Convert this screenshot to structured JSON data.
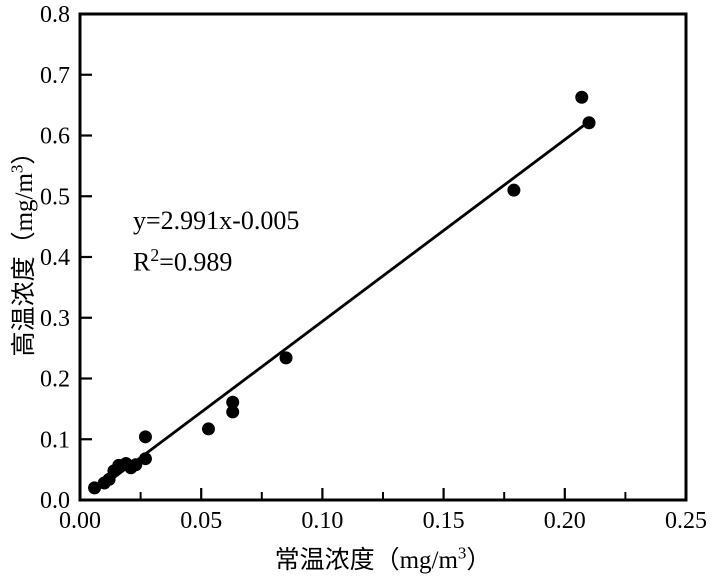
{
  "chart_data": {
    "type": "scatter",
    "title": "",
    "xlabel": "常温浓度（mg/m³）",
    "ylabel": "高温浓度（mg/m³）",
    "xlim": [
      0,
      0.25
    ],
    "ylim": [
      0,
      0.8
    ],
    "x_major_ticks": [
      0,
      0.05,
      0.1,
      0.15,
      0.2,
      0.25
    ],
    "x_tick_labels": [
      "0.00",
      "0.05",
      "0.10",
      "0.15",
      "0.20",
      "0.25"
    ],
    "x_minor_ticks": [
      0.025,
      0.075,
      0.125,
      0.175,
      0.225
    ],
    "y_major_ticks": [
      0,
      0.1,
      0.2,
      0.3,
      0.4,
      0.5,
      0.6,
      0.7,
      0.8
    ],
    "y_tick_labels": [
      "0.0",
      "0.1",
      "0.2",
      "0.3",
      "0.4",
      "0.5",
      "0.6",
      "0.7",
      "0.8"
    ],
    "grid": false,
    "legend": false,
    "points": [
      [
        0.006,
        0.02
      ],
      [
        0.01,
        0.028
      ],
      [
        0.012,
        0.034
      ],
      [
        0.014,
        0.048
      ],
      [
        0.016,
        0.057
      ],
      [
        0.019,
        0.06
      ],
      [
        0.021,
        0.053
      ],
      [
        0.023,
        0.058
      ],
      [
        0.027,
        0.068
      ],
      [
        0.027,
        0.104
      ],
      [
        0.053,
        0.117
      ],
      [
        0.063,
        0.145
      ],
      [
        0.063,
        0.161
      ],
      [
        0.085,
        0.234
      ],
      [
        0.179,
        0.51
      ],
      [
        0.207,
        0.663
      ],
      [
        0.21,
        0.621
      ]
    ],
    "fit_line": {
      "equation": "y=2.991x-0.005",
      "slope": 2.991,
      "intercept": -0.005,
      "r_squared": 0.989,
      "x_start": 0.01,
      "x_end": 0.2115
    },
    "annotation": {
      "line1": "y=2.991x-0.005",
      "line2": "R²=0.989"
    },
    "colors": {
      "marker": "#000000",
      "fit_line": "#000000",
      "axis": "#000000",
      "text": "#000000",
      "background": "#ffffff"
    }
  }
}
